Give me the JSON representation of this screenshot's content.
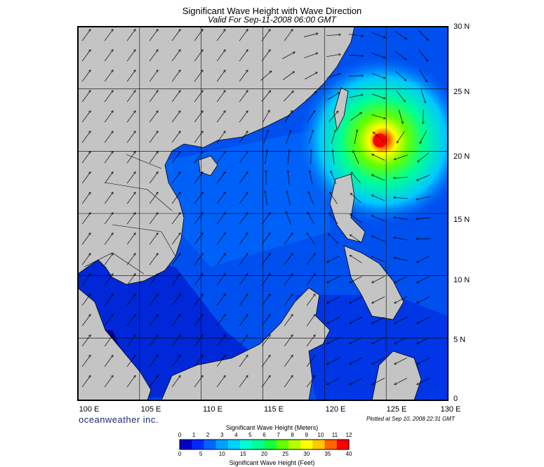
{
  "header": {
    "title": "Significant Wave Height with Wave Direction",
    "subtitle": "Valid For Sep-11-2008 06:00 GMT"
  },
  "map": {
    "lon_labels": [
      "100 E",
      "105 E",
      "110 E",
      "115 E",
      "120 E",
      "125 E",
      "130 E"
    ],
    "lat_labels": [
      "30 N",
      "25 N",
      "20 N",
      "15 N",
      "10 N",
      "5 N",
      "0"
    ],
    "lon_range": [
      100,
      130
    ],
    "lat_range": [
      0,
      30
    ],
    "storm_center": {
      "lon": 124.5,
      "lat": 21.5
    }
  },
  "footer": {
    "brand": "oceanweather inc.",
    "plotted": "Plotted at Sep 10, 2008 22:31 GMT"
  },
  "legend": {
    "meters_title": "Significant Wave Height (Meters)",
    "feet_title": "Significant Wave Height (Feet)",
    "meters_ticks": [
      "0",
      "1",
      "2",
      "3",
      "4",
      "5",
      "6",
      "7",
      "8",
      "9",
      "10",
      "11",
      "12"
    ],
    "feet_ticks": [
      "0",
      "5",
      "10",
      "15",
      "20",
      "25",
      "30",
      "35",
      "40"
    ],
    "colors": [
      "#0000c8",
      "#0028ff",
      "#0064ff",
      "#00a0ff",
      "#00d2ff",
      "#00ffd2",
      "#00ff96",
      "#14ff3c",
      "#64ff00",
      "#b4ff00",
      "#ffff00",
      "#ffc800",
      "#ff6400",
      "#ff0000"
    ]
  }
}
